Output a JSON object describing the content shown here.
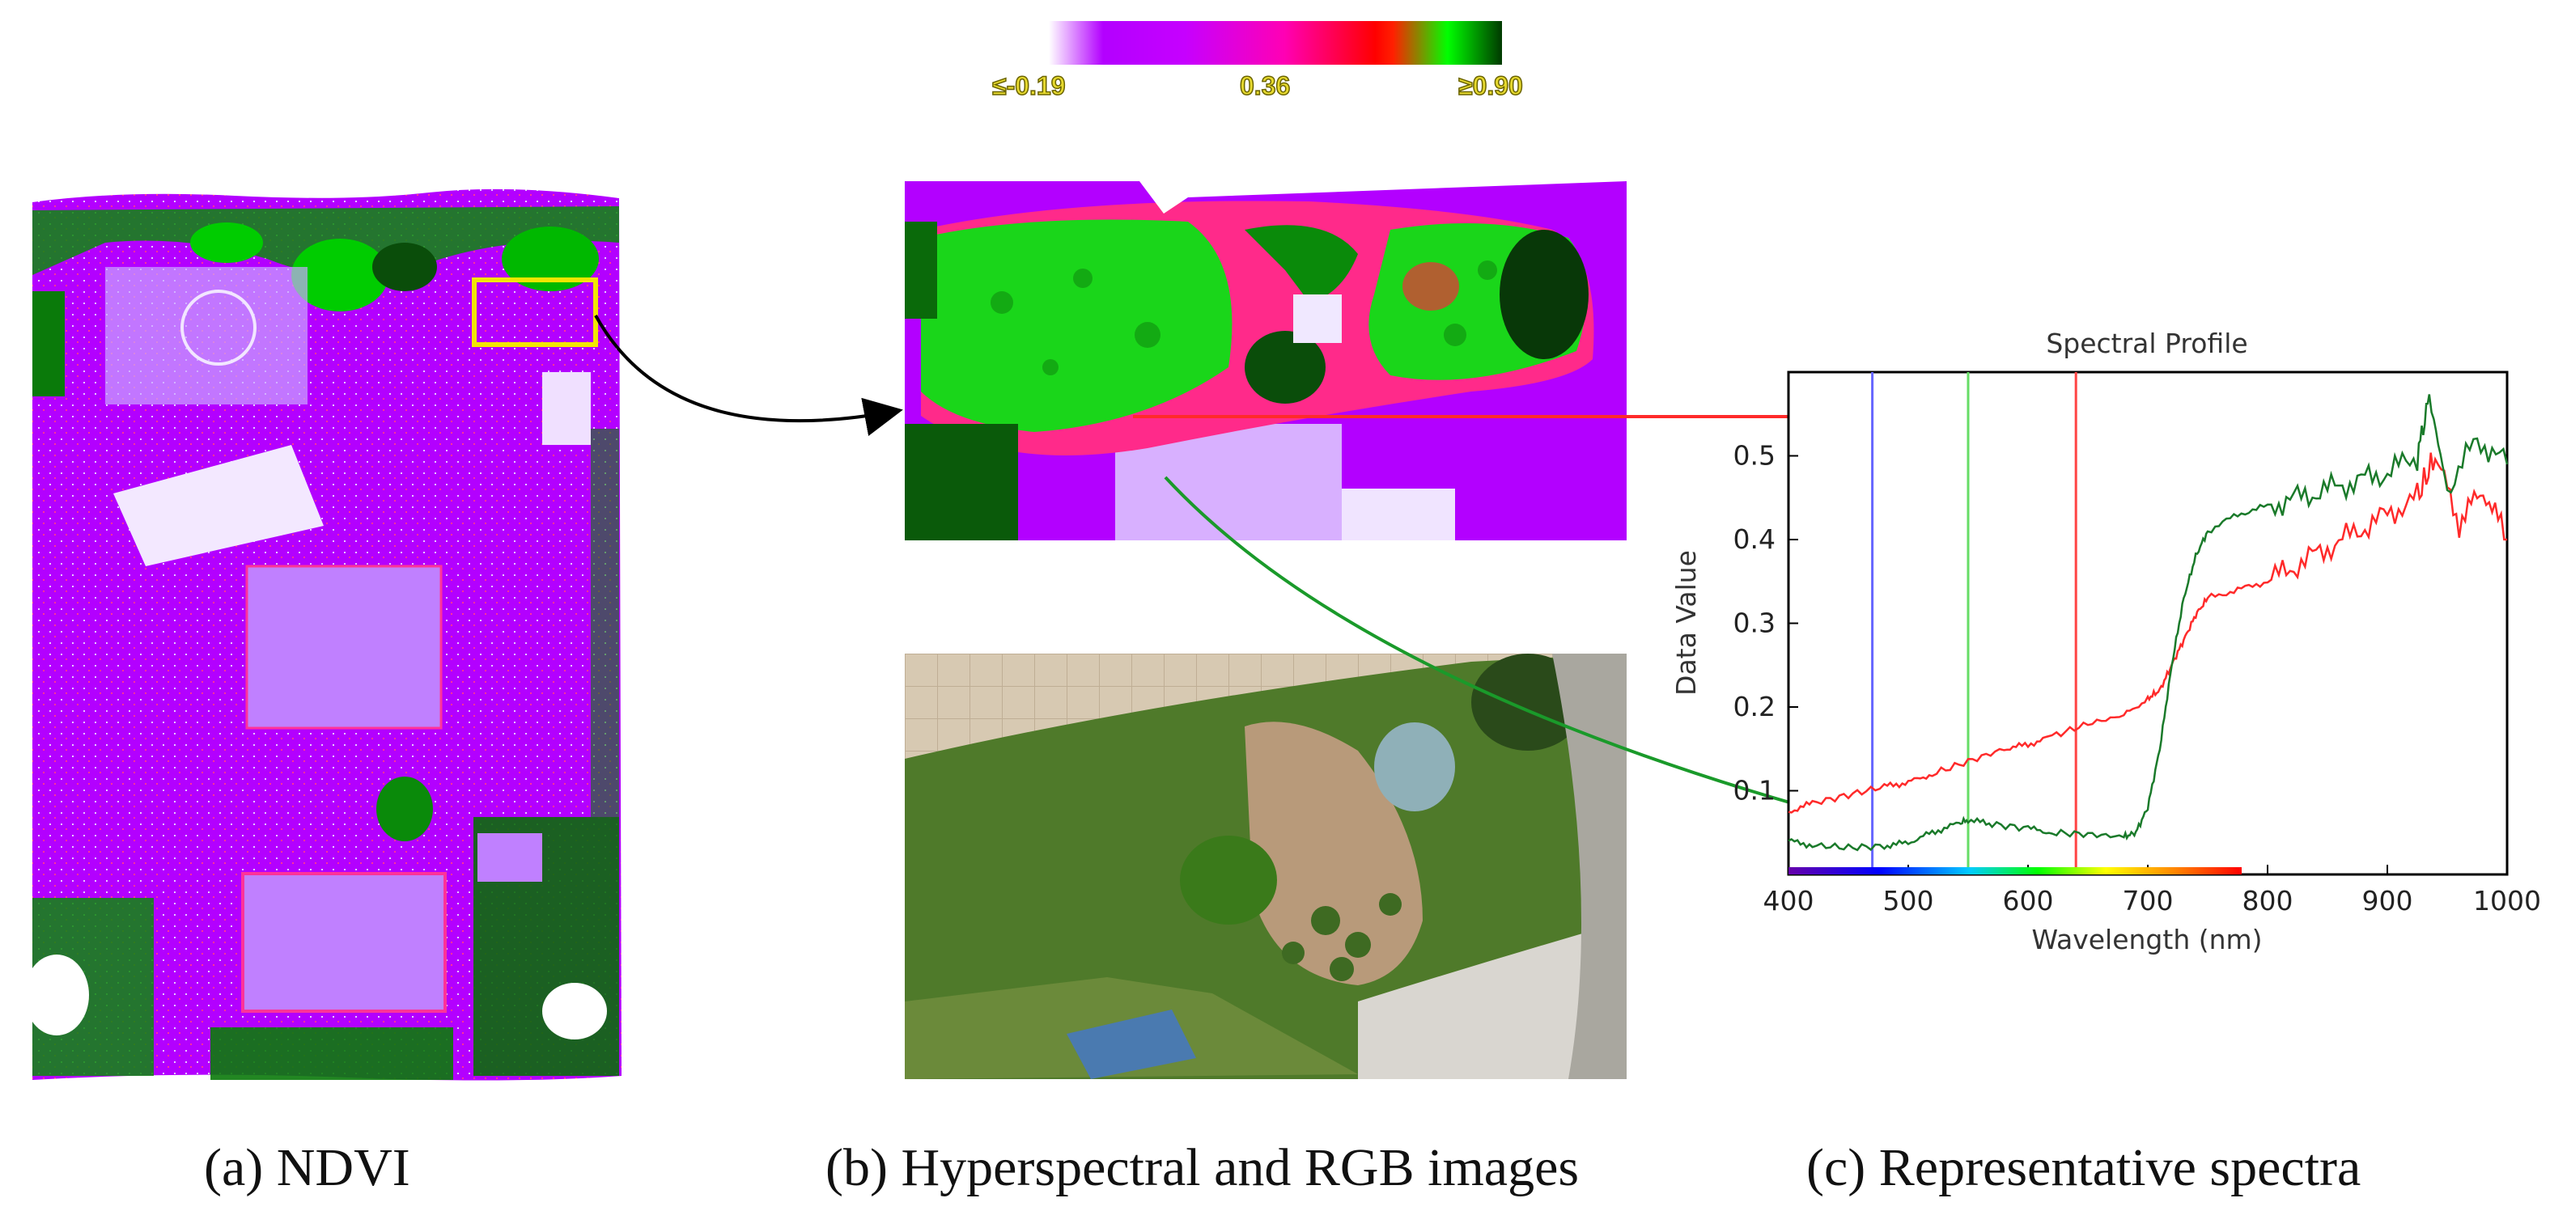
{
  "colorbar": {
    "min_label": "≤-0.19",
    "mid_label": "0.36",
    "max_label": "≥0.90",
    "stops": [
      "#ffffff",
      "#a020f0",
      "#c000ff",
      "#ff00a0",
      "#ff0000",
      "#00ff00",
      "#005000"
    ]
  },
  "panels": {
    "a": {
      "caption": "(a) NDVI"
    },
    "b": {
      "caption": "(b) Hyperspectral and RGB images"
    },
    "c": {
      "caption": "(c) Representative spectra"
    }
  },
  "colors": {
    "ndvi_low": "#b300ff",
    "ndvi_mid": "#ff1a66",
    "ndvi_high": "#00cc00",
    "ndvi_dense": "#0a4d0a",
    "highlight_box": "#f2e600"
  },
  "chart_data": {
    "type": "line",
    "title": "Spectral Profile",
    "xlabel": "Wavelength (nm)",
    "ylabel": "Data Value",
    "xlim": [
      400,
      1000
    ],
    "ylim": [
      0,
      0.6
    ],
    "xticks": [
      "400",
      "500",
      "600",
      "700",
      "800",
      "900",
      "1000"
    ],
    "yticks": [
      "0.1",
      "0.2",
      "0.3",
      "0.4",
      "0.5"
    ],
    "xtick_values": [
      400,
      500,
      600,
      700,
      800,
      900,
      1000
    ],
    "ytick_values": [
      0.1,
      0.2,
      0.3,
      0.4,
      0.5
    ],
    "grid": false,
    "band_markers": [
      {
        "x": 470,
        "color": "#6666ff"
      },
      {
        "x": 550,
        "color": "#66dd66"
      },
      {
        "x": 640,
        "color": "#ff4444"
      }
    ],
    "series": [
      {
        "color": "#ff2a2a",
        "x": [
          400,
          420,
          450,
          480,
          500,
          520,
          550,
          580,
          600,
          620,
          650,
          680,
          700,
          710,
          720,
          730,
          740,
          750,
          775,
          800,
          825,
          850,
          875,
          900,
          925,
          940,
          960,
          980,
          1000
        ],
        "y": [
          0.075,
          0.085,
          0.095,
          0.105,
          0.11,
          0.12,
          0.135,
          0.15,
          0.155,
          0.165,
          0.18,
          0.19,
          0.21,
          0.22,
          0.25,
          0.28,
          0.31,
          0.33,
          0.34,
          0.35,
          0.37,
          0.39,
          0.41,
          0.43,
          0.45,
          0.5,
          0.42,
          0.46,
          0.4
        ]
      },
      {
        "color": "#1a7a2a",
        "x": [
          400,
          420,
          450,
          480,
          500,
          520,
          540,
          550,
          570,
          600,
          620,
          650,
          680,
          690,
          700,
          710,
          720,
          730,
          740,
          750,
          775,
          800,
          825,
          850,
          875,
          900,
          925,
          935,
          950,
          975,
          1000
        ],
        "y": [
          0.04,
          0.035,
          0.032,
          0.034,
          0.038,
          0.05,
          0.06,
          0.065,
          0.06,
          0.055,
          0.05,
          0.048,
          0.045,
          0.05,
          0.08,
          0.15,
          0.25,
          0.33,
          0.38,
          0.41,
          0.43,
          0.44,
          0.45,
          0.46,
          0.47,
          0.48,
          0.5,
          0.57,
          0.46,
          0.52,
          0.49
        ]
      }
    ]
  }
}
